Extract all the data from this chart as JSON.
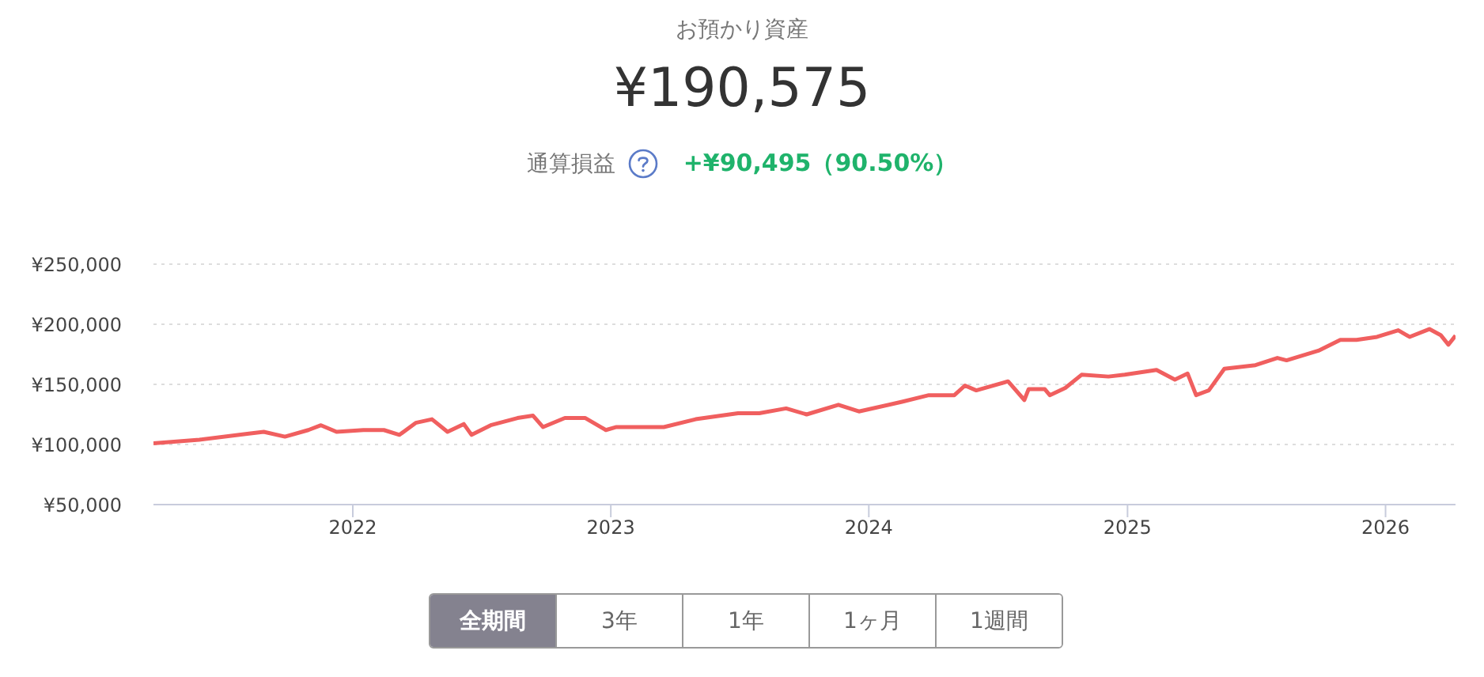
{
  "chart_data": {
    "type": "line",
    "title": "お預かり資産",
    "subtitle": "¥190,575",
    "annotations": [
      "通算損益",
      "+¥90,495（90.50%）",
      "全期間",
      "3年",
      "1年",
      "1ヶ月",
      "1週間"
    ],
    "x": [
      "2021-03-25",
      "2021-05-29",
      "2021-08-07",
      "2021-08-28",
      "2021-09-27",
      "2021-10-30",
      "2021-11-17",
      "2021-12-09",
      "2022-01-16",
      "2022-02-14",
      "2022-03-08",
      "2022-03-31",
      "2022-04-23",
      "2022-05-15",
      "2022-06-07",
      "2022-06-18",
      "2022-07-15",
      "2022-08-22",
      "2022-09-13",
      "2022-09-27",
      "2022-10-28",
      "2022-11-26",
      "2022-12-25",
      "2023-01-09",
      "2023-03-17",
      "2023-05-01",
      "2023-06-30",
      "2023-07-30",
      "2023-09-06",
      "2023-10-05",
      "2023-11-19",
      "2023-12-18",
      "2024-02-17",
      "2024-03-26",
      "2024-05-01",
      "2024-05-16",
      "2024-06-01",
      "2024-07-16",
      "2024-08-08",
      "2024-08-14",
      "2024-09-06",
      "2024-09-13",
      "2024-10-05",
      "2024-10-28",
      "2024-12-05",
      "2024-12-28",
      "2025-02-11",
      "2025-03-09",
      "2025-03-27",
      "2025-04-08",
      "2025-04-26",
      "2025-05-18",
      "2025-07-01",
      "2025-08-01",
      "2025-08-14",
      "2025-09-28",
      "2025-10-29",
      "2025-11-21",
      "2025-12-20",
      "2026-01-19",
      "2026-02-04",
      "2026-03-04",
      "2026-03-20",
      "2026-03-31",
      "2026-04-10"
    ],
    "series": [
      {
        "color": "#f05f5f",
        "values": [
          101000,
          104000,
          109000,
          110500,
          106500,
          112000,
          116000,
          110500,
          112000,
          112000,
          108000,
          118000,
          121000,
          110500,
          117000,
          108000,
          116000,
          122000,
          124000,
          114500,
          122000,
          122000,
          112000,
          114500,
          114500,
          121000,
          126000,
          126000,
          130000,
          125000,
          133000,
          127500,
          135500,
          141000,
          141000,
          149000,
          145000,
          152500,
          137000,
          146000,
          146000,
          141000,
          147000,
          158000,
          156500,
          158000,
          162000,
          154000,
          159000,
          141000,
          145000,
          163000,
          166000,
          172000,
          170000,
          178000,
          187000,
          187000,
          189500,
          195000,
          189500,
          196000,
          191000,
          183000,
          190575
        ]
      }
    ],
    "xlim": [
      "2021-03-25",
      "2026-04-10"
    ],
    "xticks": [
      "2022",
      "2023",
      "2024",
      "2025",
      "2026"
    ],
    "ylim": [
      50000,
      250000
    ],
    "yticks": [
      {
        "value": 50000,
        "label": "¥50,000"
      },
      {
        "value": 100000,
        "label": "¥100,000"
      },
      {
        "value": 150000,
        "label": "¥150,000"
      },
      {
        "value": 200000,
        "label": "¥200,000"
      },
      {
        "value": 250000,
        "label": "¥250,000"
      }
    ],
    "grid": "y",
    "legend": false,
    "marker": "none",
    "line_style": "solid"
  }
}
